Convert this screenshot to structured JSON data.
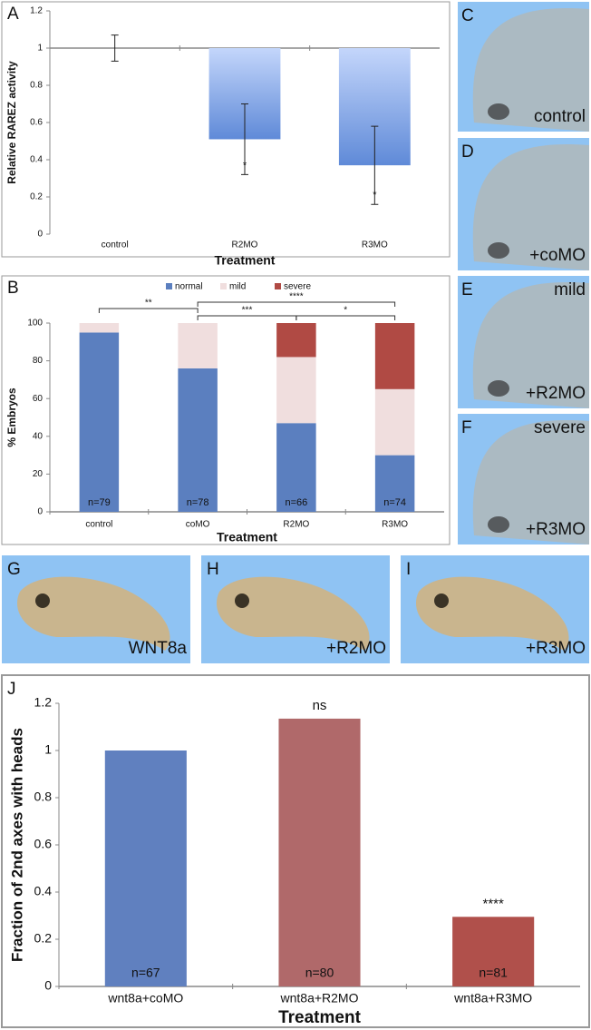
{
  "chart_data": [
    {
      "type": "bar",
      "panel": "A",
      "ylabel": "Relative RAREZ activity",
      "xlabel": "Treatment",
      "categories": [
        "control",
        "R2MO",
        "R3MO"
      ],
      "values": [
        1,
        0.51,
        0.37
      ],
      "errors": [
        0.07,
        0.19,
        0.21
      ],
      "annotations": [
        null,
        "*",
        "*"
      ],
      "baseline": 1,
      "ylim": [
        0,
        1.2
      ],
      "yticks": [
        0,
        0.2,
        0.4,
        0.6,
        0.8,
        1,
        1.2
      ]
    },
    {
      "type": "stacked_bar",
      "panel": "B",
      "ylabel": "% Embryos",
      "xlabel": "Treatment",
      "categories": [
        "control",
        "coMO",
        "R2MO",
        "R3MO"
      ],
      "series": [
        {
          "name": "normal",
          "color": "#5b7fbf",
          "values": [
            95,
            76,
            47,
            30
          ]
        },
        {
          "name": "mild",
          "color": "#f0dede",
          "values": [
            5,
            24,
            35,
            35
          ]
        },
        {
          "name": "severe",
          "color": "#b04a44",
          "values": [
            0,
            0,
            18,
            35
          ]
        }
      ],
      "n_labels": [
        "n=79",
        "n=78",
        "n=66",
        "n=74"
      ],
      "significance": [
        {
          "between": [
            "control",
            "coMO"
          ],
          "label": "**"
        },
        {
          "between": [
            "coMO",
            "R3MO"
          ],
          "label": "****"
        },
        {
          "between": [
            "coMO",
            "R2MO"
          ],
          "label": "***"
        },
        {
          "between": [
            "R2MO",
            "R3MO"
          ],
          "label": "*"
        }
      ],
      "ylim": [
        0,
        100
      ],
      "yticks": [
        0,
        20,
        40,
        60,
        80,
        100
      ]
    },
    {
      "type": "bar",
      "panel": "J",
      "ylabel": "Fraction of 2nd axes with heads",
      "xlabel": "Treatment",
      "categories": [
        "wnt8a+coMO",
        "wnt8a+R2MO",
        "wnt8a+R3MO"
      ],
      "values": [
        1,
        1.135,
        0.295
      ],
      "colors": [
        "#6080bf",
        "#b0696a",
        "#b0504b"
      ],
      "n_labels": [
        "n=67",
        "n=80",
        "n=81"
      ],
      "annotations": [
        null,
        "ns",
        "****"
      ],
      "ylim": [
        0,
        1.2
      ],
      "yticks": [
        0,
        0.2,
        0.4,
        0.6,
        0.8,
        1,
        1.2
      ]
    }
  ],
  "panels": [
    {
      "letter": "C",
      "caption": "control"
    },
    {
      "letter": "D",
      "caption": "+coMO"
    },
    {
      "letter": "E",
      "top_text": "mild",
      "caption": "+R2MO"
    },
    {
      "letter": "F",
      "top_text": "severe",
      "caption": "+R3MO"
    },
    {
      "letter": "G",
      "caption": "WNT8a"
    },
    {
      "letter": "H",
      "caption": "+R2MO"
    },
    {
      "letter": "I",
      "caption": "+R3MO"
    }
  ]
}
